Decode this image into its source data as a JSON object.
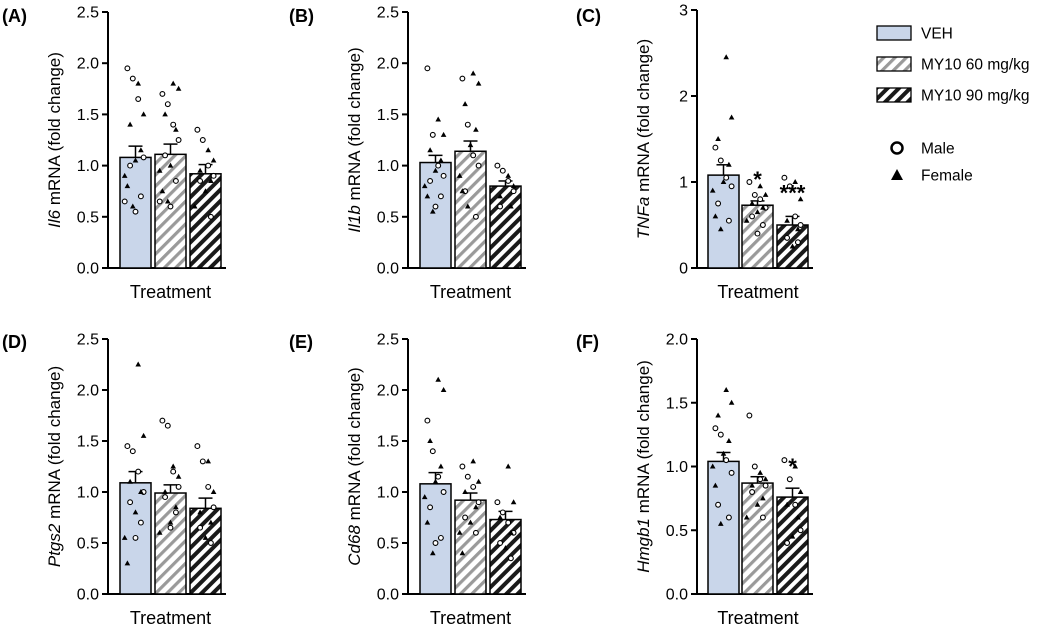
{
  "colors": {
    "veh_fill": "#c9d6ea",
    "hatch_light": "#9a9a9a",
    "hatch_dark": "#1a1a1a",
    "axis": "#000000"
  },
  "legend": {
    "groups": [
      {
        "label": "VEH",
        "pattern": "solid"
      },
      {
        "label": "MY10 60 mg/kg",
        "pattern": "hatch-light"
      },
      {
        "label": "MY10 90 mg/kg",
        "pattern": "hatch-dark"
      }
    ],
    "sexes": [
      {
        "label": "Male",
        "marker": "circle"
      },
      {
        "label": "Female",
        "marker": "triangle"
      }
    ]
  },
  "chart_data": [
    {
      "panel": "(A)",
      "type": "bar",
      "gene": "Il6",
      "ylabel_suffix": " mRNA (fold change)",
      "xlabel": "Treatment",
      "ylim": [
        0,
        2.5
      ],
      "yticks": [
        "0.0",
        "0.5",
        "1.0",
        "1.5",
        "2.0",
        "2.5"
      ],
      "categories": [
        "VEH",
        "MY10 60 mg/kg",
        "MY10 90 mg/kg"
      ],
      "values": [
        1.08,
        1.11,
        0.92
      ],
      "sem": [
        0.11,
        0.1,
        0.09
      ],
      "sig": [
        "",
        "",
        ""
      ],
      "points": [
        {
          "male": [
            1.95,
            1.85,
            1.65,
            1.08,
            1.0,
            0.7,
            0.55,
            0.65
          ],
          "female": [
            1.8,
            1.5,
            1.4,
            1.15,
            1.05,
            0.9,
            0.8,
            0.6
          ]
        },
        {
          "male": [
            1.7,
            1.6,
            1.4,
            1.25,
            1.1,
            0.85,
            0.6,
            0.65
          ],
          "female": [
            1.8,
            1.75,
            1.5,
            1.35,
            1.0,
            0.95,
            0.75,
            0.65
          ]
        },
        {
          "male": [
            1.35,
            1.25,
            1.0,
            0.9,
            0.85,
            0.5
          ],
          "female": [
            1.15,
            1.05,
            0.95,
            0.85,
            0.75,
            0.6
          ]
        }
      ]
    },
    {
      "panel": "(B)",
      "type": "bar",
      "gene": "Il1b",
      "ylabel_suffix": " mRNA (fold change)",
      "xlabel": "Treatment",
      "ylim": [
        0,
        2.5
      ],
      "yticks": [
        "0.0",
        "0.5",
        "1.0",
        "1.5",
        "2.0",
        "2.5"
      ],
      "categories": [
        "VEH",
        "MY10 60 mg/kg",
        "MY10 90 mg/kg"
      ],
      "values": [
        1.03,
        1.14,
        0.8
      ],
      "sem": [
        0.07,
        0.1,
        0.05
      ],
      "sig": [
        "",
        "",
        ""
      ],
      "points": [
        {
          "male": [
            1.95,
            1.3,
            1.0,
            0.9,
            0.85,
            0.7,
            0.6
          ],
          "female": [
            1.45,
            1.3,
            1.15,
            1.05,
            0.95,
            0.8,
            0.7,
            0.55
          ]
        },
        {
          "male": [
            1.85,
            1.4,
            1.1,
            1.0,
            0.75,
            0.5
          ],
          "female": [
            1.9,
            1.8,
            1.6,
            1.35,
            1.2,
            0.9,
            0.75,
            0.6
          ]
        },
        {
          "male": [
            1.0,
            0.95,
            0.85,
            0.75,
            0.6
          ],
          "female": [
            0.9,
            0.8,
            0.7,
            0.6
          ]
        }
      ]
    },
    {
      "panel": "(C)",
      "type": "bar",
      "gene": "TNFa",
      "ylabel_suffix": " mRNA (fold change)",
      "xlabel": "Treatment",
      "ylim": [
        0,
        3
      ],
      "yticks": [
        "0",
        "1",
        "2",
        "3"
      ],
      "categories": [
        "VEH",
        "MY10 60 mg/kg",
        "MY10 90 mg/kg"
      ],
      "values": [
        1.08,
        0.73,
        0.5
      ],
      "sem": [
        0.12,
        0.05,
        0.1
      ],
      "sig": [
        "",
        "*",
        "***"
      ],
      "points": [
        {
          "male": [
            1.4,
            1.25,
            1.05,
            0.95,
            0.75,
            0.55
          ],
          "female": [
            2.45,
            1.75,
            1.5,
            1.2,
            1.0,
            0.9,
            0.6,
            0.45
          ]
        },
        {
          "male": [
            1.0,
            0.85,
            0.8,
            0.7,
            0.6,
            0.5,
            0.4
          ],
          "female": [
            0.95,
            0.85,
            0.75,
            0.7,
            0.65,
            0.55
          ]
        },
        {
          "male": [
            1.05,
            0.95,
            0.6,
            0.5,
            0.35,
            0.3
          ],
          "female": [
            1.0,
            0.8,
            0.55,
            0.45,
            0.25
          ]
        }
      ]
    },
    {
      "panel": "(D)",
      "type": "bar",
      "gene": "Ptgs2",
      "ylabel_suffix": " mRNA (fold change)",
      "xlabel": "Treatment",
      "ylim": [
        0,
        2.5
      ],
      "yticks": [
        "0.0",
        "0.5",
        "1.0",
        "1.5",
        "2.0",
        "2.5"
      ],
      "categories": [
        "VEH",
        "MY10 60 mg/kg",
        "MY10 90 mg/kg"
      ],
      "values": [
        1.09,
        0.99,
        0.84
      ],
      "sem": [
        0.11,
        0.08,
        0.1
      ],
      "sig": [
        "",
        "",
        ""
      ],
      "points": [
        {
          "male": [
            1.45,
            1.4,
            1.2,
            1.0,
            0.9,
            0.7,
            0.55
          ],
          "female": [
            2.25,
            1.55,
            1.1,
            1.0,
            0.8,
            0.55,
            0.3
          ]
        },
        {
          "male": [
            1.7,
            1.65,
            1.2,
            1.05,
            0.95,
            0.8,
            0.65
          ],
          "female": [
            1.25,
            1.15,
            1.0,
            0.85,
            0.7,
            0.6
          ]
        },
        {
          "male": [
            1.45,
            1.3,
            1.05,
            0.85,
            0.65,
            0.5
          ],
          "female": [
            1.3,
            1.0,
            0.8,
            0.7,
            0.55
          ]
        }
      ]
    },
    {
      "panel": "(E)",
      "type": "bar",
      "gene": "Cd68",
      "ylabel_suffix": " mRNA (fold change)",
      "xlabel": "Treatment",
      "ylim": [
        0,
        2.5
      ],
      "yticks": [
        "0.0",
        "0.5",
        "1.0",
        "1.5",
        "2.0",
        "2.5"
      ],
      "categories": [
        "VEH",
        "MY10 60 mg/kg",
        "MY10 90 mg/kg"
      ],
      "values": [
        1.08,
        0.92,
        0.73
      ],
      "sem": [
        0.11,
        0.07,
        0.08
      ],
      "sig": [
        "",
        "",
        ""
      ],
      "points": [
        {
          "male": [
            1.7,
            1.4,
            1.15,
            1.0,
            0.85,
            0.55,
            0.5
          ],
          "female": [
            2.1,
            2.0,
            1.5,
            1.25,
            1.1,
            0.95,
            0.7,
            0.4
          ]
        },
        {
          "male": [
            1.25,
            1.15,
            1.05,
            0.9,
            0.75,
            0.6
          ],
          "female": [
            1.3,
            1.1,
            1.0,
            0.85,
            0.7,
            0.6,
            0.4
          ]
        },
        {
          "male": [
            0.9,
            0.8,
            0.7,
            0.6,
            0.5,
            0.35
          ],
          "female": [
            1.25,
            0.9,
            0.75,
            0.6,
            0.45
          ]
        }
      ]
    },
    {
      "panel": "(F)",
      "type": "bar",
      "gene": "Hmgb1",
      "ylabel_suffix": " mRNA (fold change)",
      "xlabel": "Treatment",
      "ylim": [
        0,
        2.0
      ],
      "yticks": [
        "0.0",
        "0.5",
        "1.0",
        "1.5",
        "2.0"
      ],
      "categories": [
        "VEH",
        "MY10 60 mg/kg",
        "MY10 90 mg/kg"
      ],
      "values": [
        1.04,
        0.87,
        0.76
      ],
      "sem": [
        0.07,
        0.05,
        0.07
      ],
      "sig": [
        "",
        "",
        "*"
      ],
      "points": [
        {
          "male": [
            1.3,
            1.25,
            1.05,
            0.95,
            0.7,
            0.6
          ],
          "female": [
            1.6,
            1.5,
            1.4,
            1.2,
            1.1,
            1.0,
            0.85,
            0.55
          ]
        },
        {
          "male": [
            1.4,
            1.0,
            0.9,
            0.85,
            0.8,
            0.6
          ],
          "female": [
            0.95,
            0.9,
            0.85,
            0.75,
            0.7,
            0.6
          ]
        },
        {
          "male": [
            1.05,
            0.9,
            0.7,
            0.5,
            0.4
          ],
          "female": [
            1.0,
            0.8,
            0.7,
            0.6,
            0.45
          ]
        }
      ]
    }
  ]
}
